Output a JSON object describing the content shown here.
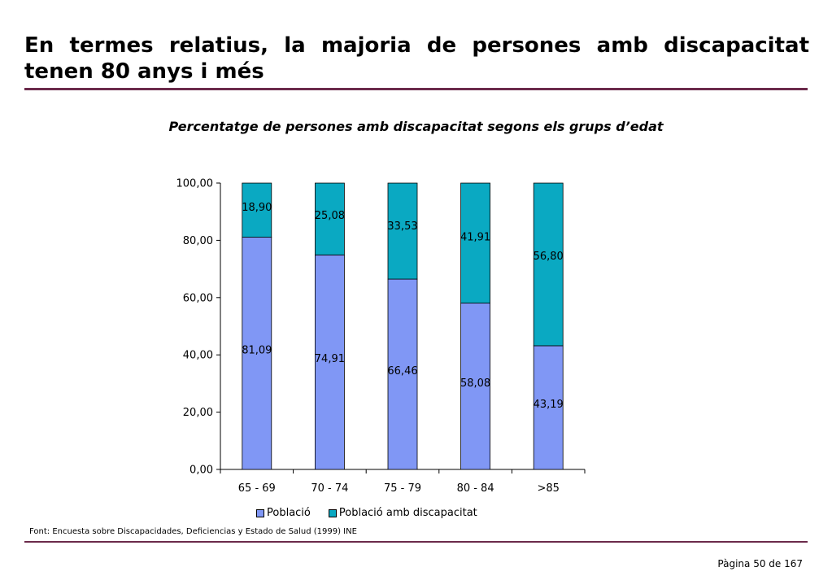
{
  "title": "En termes relatius, la majoria de persones amb discapacitat tenen 80 anys i més",
  "source": "Font: Encuesta sobre Discapacidades, Deficiencias y Estado de Salud (1999) INE",
  "page_number": "Pàgina 50 de 167",
  "colors": {
    "rule": "#6b2a4b",
    "poblacio": "#8097f5",
    "discapacitat": "#0aa9c2"
  },
  "chart_data": {
    "type": "bar",
    "stacked": true,
    "title": "Percentatge de persones amb discapacitat segons els grups d’edat",
    "categories": [
      "65 - 69",
      "70 - 74",
      "75 - 79",
      "80 - 84",
      ">85"
    ],
    "series": [
      {
        "name": "Població",
        "values": [
          81.09,
          74.91,
          66.46,
          58.08,
          43.19
        ],
        "labels": [
          "81,09",
          "74,91",
          "66,46",
          "58,08",
          "43,19"
        ]
      },
      {
        "name": "Població amb discapacitat",
        "values": [
          18.9,
          25.08,
          33.53,
          41.91,
          56.8
        ],
        "labels": [
          "18,90",
          "25,08",
          "33,53",
          "41,91",
          "56,80"
        ]
      }
    ],
    "ylim": [
      0,
      100
    ],
    "yticks": [
      0,
      20,
      40,
      60,
      80,
      100
    ],
    "ytick_labels": [
      "0,00",
      "20,00",
      "40,00",
      "60,00",
      "80,00",
      "100,00"
    ],
    "grid": false,
    "legend": "bottom"
  }
}
